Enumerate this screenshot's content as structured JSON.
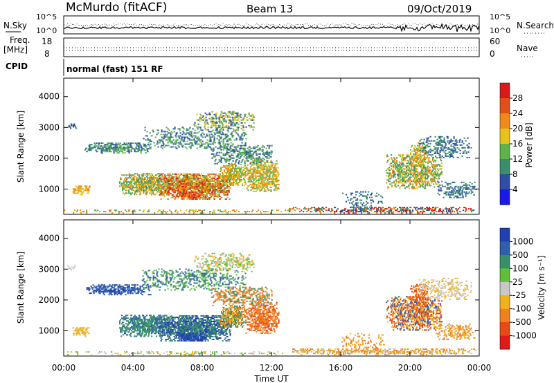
{
  "header": {
    "radar": "McMurdo (fitACF)",
    "beam": "Beam 13",
    "date": "09/Oct/2019"
  },
  "noise_panel": {
    "left_label": "N.Sky",
    "left_ticks": [
      "10^5",
      "10^0"
    ],
    "right_label": "N.Search",
    "right_ticks": [
      "10^5",
      "10^0"
    ]
  },
  "freq_panel": {
    "label_line1": "Freq.",
    "label_line2": "[MHz]",
    "left_ticks": [
      "18",
      "8"
    ],
    "right_label": "Nave",
    "right_ticks": [
      "60",
      "0"
    ]
  },
  "cpid": {
    "label": "CPID",
    "text": "normal (fast) 151 RF"
  },
  "chart_data": [
    {
      "type": "heatmap",
      "name": "power",
      "ylabel": "Slant Range [km]",
      "yticks": [
        1000,
        2000,
        3000,
        4000
      ],
      "ylim": [
        180,
        4600
      ],
      "xlim": [
        0,
        24
      ],
      "colorbar_label": "Power [dB]",
      "colorbar_ticks": [
        "4",
        "8",
        "12",
        "16",
        "20",
        "24",
        "28"
      ],
      "colors": [
        "#1a1ae6",
        "#2f4fa6",
        "#3a8f6a",
        "#5fb34a",
        "#e6c21a",
        "#ee8a1a",
        "#e0501a",
        "#d91a1a"
      ]
    },
    {
      "type": "heatmap",
      "name": "velocity",
      "ylabel": "Slant Range [km]",
      "yticks": [
        1000,
        2000,
        3000,
        4000
      ],
      "ylim": [
        180,
        4600
      ],
      "xlim": [
        0,
        24
      ],
      "colorbar_label": "Velocity [m s⁻¹]",
      "colorbar_ticks": [
        "1000",
        "500",
        "100",
        "25",
        "-25",
        "-100",
        "-500",
        "-1000"
      ],
      "colors": [
        "#2040b0",
        "#2f5fa8",
        "#3a8f6a",
        "#5fbf3a",
        "#c8c8c8",
        "#f0b020",
        "#f08020",
        "#e84a1a",
        "#e01a1a"
      ]
    }
  ],
  "x_axis": {
    "ticks": [
      "00:00",
      "04:00",
      "08:00",
      "12:00",
      "16:00",
      "20:00",
      "00:00"
    ],
    "label": "Time UT"
  }
}
